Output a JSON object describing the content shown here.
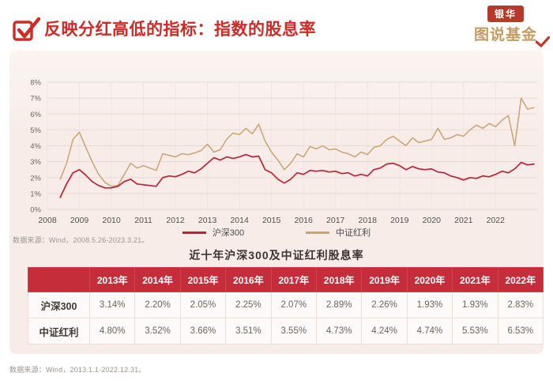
{
  "header": {
    "title": "反映分红高低的指标：指数的股息率",
    "logo": {
      "top": "银华",
      "bottom": "图说基金"
    }
  },
  "chart": {
    "y_tick_labels": [
      "0%",
      "1%",
      "2%",
      "3%",
      "4%",
      "5%",
      "6%",
      "7%",
      "8%"
    ],
    "x_tick_labels": [
      "2008",
      "2009",
      "2010",
      "2011",
      "2012",
      "2013",
      "2014",
      "2015",
      "2016",
      "2017",
      "2018",
      "2019",
      "2020",
      "2021",
      "2022"
    ],
    "legend": [
      {
        "label": "沪深300",
        "color": "#be2136"
      },
      {
        "label": "中证红利",
        "color": "#c7a477"
      }
    ],
    "source_note": "数据来源：Wind，2008.5.26-2023.3.21。"
  },
  "chart_data": {
    "type": "line",
    "title": "",
    "xlabel": "",
    "ylabel": "",
    "ylim": [
      0,
      8
    ],
    "xlim": [
      2008,
      2023.3
    ],
    "grid": true,
    "legend_position": "bottom",
    "x": [
      2008.4,
      2008.6,
      2008.8,
      2009.0,
      2009.2,
      2009.4,
      2009.6,
      2009.8,
      2010.0,
      2010.2,
      2010.4,
      2010.6,
      2010.8,
      2011.0,
      2011.2,
      2011.4,
      2011.6,
      2011.8,
      2012.0,
      2012.2,
      2012.4,
      2012.6,
      2012.8,
      2013.0,
      2013.2,
      2013.4,
      2013.6,
      2013.8,
      2014.0,
      2014.2,
      2014.4,
      2014.6,
      2014.8,
      2015.0,
      2015.2,
      2015.4,
      2015.6,
      2015.8,
      2016.0,
      2016.2,
      2016.4,
      2016.6,
      2016.8,
      2017.0,
      2017.2,
      2017.4,
      2017.6,
      2017.8,
      2018.0,
      2018.2,
      2018.4,
      2018.6,
      2018.8,
      2019.0,
      2019.2,
      2019.4,
      2019.6,
      2019.8,
      2020.0,
      2020.2,
      2020.4,
      2020.6,
      2020.8,
      2021.0,
      2021.2,
      2021.4,
      2021.6,
      2021.8,
      2022.0,
      2022.2,
      2022.4,
      2022.6,
      2022.8,
      2023.0,
      2023.2
    ],
    "series": [
      {
        "name": "中证红利",
        "color": "#c7a477",
        "values": [
          1.9,
          2.9,
          4.4,
          4.85,
          3.9,
          3.0,
          2.2,
          1.7,
          1.45,
          1.5,
          2.2,
          2.9,
          2.6,
          2.75,
          2.6,
          2.45,
          3.5,
          3.4,
          3.3,
          3.5,
          3.45,
          3.55,
          3.7,
          4.1,
          3.6,
          3.75,
          4.4,
          4.8,
          4.7,
          5.1,
          4.75,
          5.35,
          4.3,
          3.6,
          3.1,
          2.5,
          2.9,
          3.5,
          3.3,
          3.95,
          3.8,
          4.0,
          3.75,
          3.8,
          3.6,
          3.5,
          3.3,
          3.6,
          3.45,
          3.9,
          4.0,
          4.4,
          4.6,
          4.3,
          4.0,
          4.5,
          4.2,
          4.3,
          4.4,
          5.1,
          4.4,
          4.5,
          4.7,
          4.6,
          5.0,
          5.3,
          5.1,
          5.4,
          5.2,
          5.6,
          5.9,
          4.0,
          7.0,
          6.3,
          6.4
        ]
      },
      {
        "name": "沪深300",
        "color": "#be2136",
        "values": [
          0.75,
          1.6,
          2.3,
          2.5,
          2.15,
          1.75,
          1.5,
          1.35,
          1.35,
          1.45,
          1.75,
          1.9,
          1.6,
          1.55,
          1.5,
          1.45,
          2.0,
          2.1,
          2.05,
          2.2,
          2.4,
          2.3,
          2.55,
          2.9,
          3.25,
          3.1,
          3.3,
          3.2,
          3.3,
          3.45,
          3.3,
          3.35,
          2.5,
          2.3,
          1.9,
          1.65,
          1.9,
          2.3,
          2.2,
          2.45,
          2.4,
          2.45,
          2.35,
          2.4,
          2.25,
          2.3,
          2.1,
          2.2,
          2.1,
          2.5,
          2.6,
          2.85,
          2.9,
          2.75,
          2.5,
          2.7,
          2.55,
          2.5,
          2.55,
          2.35,
          2.3,
          2.1,
          2.0,
          1.85,
          2.0,
          1.95,
          2.1,
          2.05,
          2.2,
          2.4,
          2.3,
          2.55,
          2.95,
          2.8,
          2.85
        ]
      }
    ]
  },
  "table": {
    "title": "近十年沪深300及中证红利股息率",
    "headers": [
      "",
      "2013年",
      "2014年",
      "2015年",
      "2016年",
      "2017年",
      "2018年",
      "2019年",
      "2020年",
      "2021年",
      "2022年"
    ],
    "rows": [
      {
        "label": "沪深300",
        "values": [
          "3.14%",
          "2.20%",
          "2.05%",
          "2.25%",
          "2.07%",
          "2.89%",
          "2.26%",
          "1.93%",
          "1.93%",
          "2.83%"
        ]
      },
      {
        "label": "中证红利",
        "values": [
          "4.80%",
          "3.52%",
          "3.66%",
          "3.51%",
          "3.55%",
          "4.73%",
          "4.24%",
          "4.74%",
          "5.53%",
          "6.53%"
        ]
      }
    ],
    "source_note": "数据来源：Wind，2013.1.1-2022.12.31。"
  },
  "colors": {
    "accent_red": "#ce2a27",
    "table_header_red": "#c62d3a",
    "panel_bg": "#f8ece8",
    "gridline": "#e7dad4",
    "gridline_vertical": "#efe4df"
  }
}
